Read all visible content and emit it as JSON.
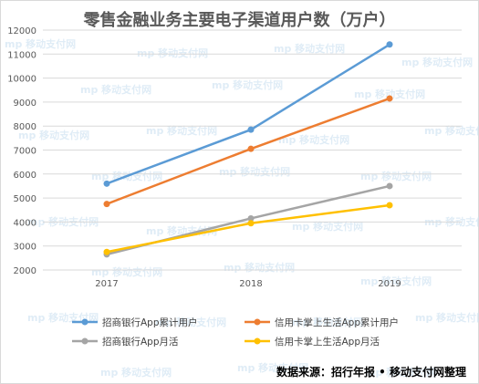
{
  "chart_data": {
    "type": "line",
    "title": "零售金融业务主要电子渠道用户数（万户）",
    "categories": [
      "2017",
      "2018",
      "2019"
    ],
    "ylim": [
      2000,
      12000
    ],
    "yticks": [
      2000,
      3000,
      4000,
      5000,
      6000,
      7000,
      8000,
      9000,
      10000,
      11000,
      12000
    ],
    "grid": true,
    "legend_position": "bottom",
    "series": [
      {
        "name": "招商银行App累计用户",
        "color": "#5b9bd5",
        "values": [
          5600,
          7850,
          11400
        ]
      },
      {
        "name": "信用卡掌上生活App累计用户",
        "color": "#ed7d31",
        "values": [
          4750,
          7050,
          9150
        ]
      },
      {
        "name": "招商银行App月活",
        "color": "#a5a5a5",
        "values": [
          2650,
          4150,
          5500
        ]
      },
      {
        "name": "信用卡掌上生活App月活",
        "color": "#ffc000",
        "values": [
          2750,
          3950,
          4700
        ]
      }
    ],
    "source": "数据来源：招行年报 • 移动支付网整理",
    "watermark": "移动支付网"
  }
}
